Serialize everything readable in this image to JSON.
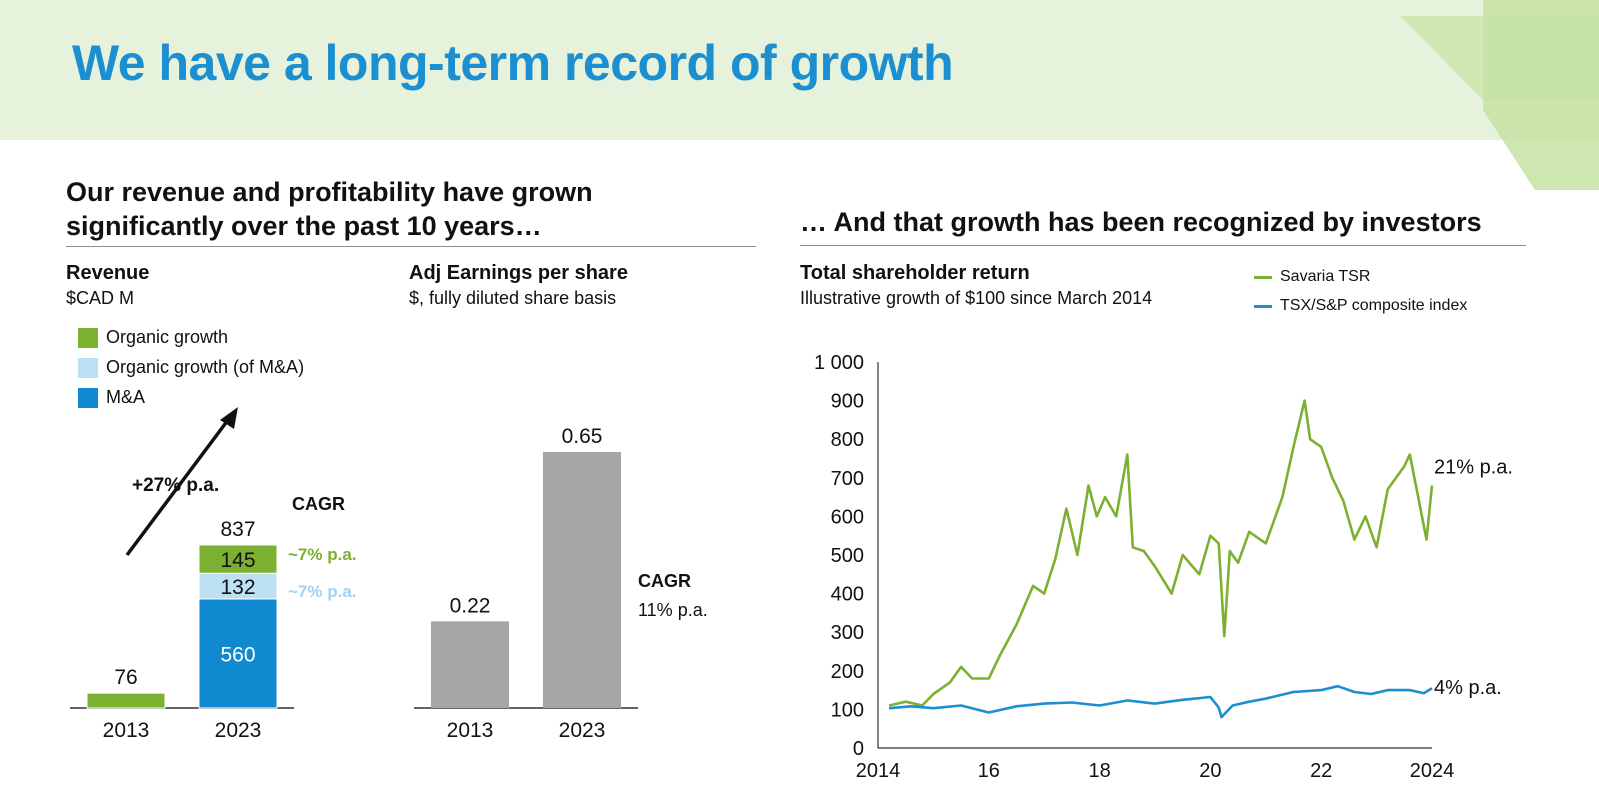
{
  "page": {
    "title": "We have a long-term record of growth",
    "left_section_title": "Our revenue and profitability have grown significantly over the past 10 years…",
    "right_section_title": "… And that growth has been recognized by investors"
  },
  "revenue": {
    "title": "Revenue",
    "subtitle": "$CAD M",
    "legend": [
      {
        "label": "Organic growth",
        "color": "#7cb030"
      },
      {
        "label": "Organic growth (of M&A)",
        "color": "#bde0f4"
      },
      {
        "label": "M&A",
        "color": "#0f8ad0"
      }
    ],
    "arrow_label": "+27% p.a.",
    "cagr_label": "CAGR",
    "cagr_values": [
      {
        "label": "~7% p.a.",
        "color": "#7cb030"
      },
      {
        "label": "~7% p.a.",
        "color": "#9fd3ef"
      }
    ]
  },
  "eps": {
    "title": "Adj Earnings per share",
    "subtitle": "$, fully diluted share basis",
    "cagr_label": "CAGR",
    "cagr_value": "11% p.a."
  },
  "tsr": {
    "title": "Total shareholder return",
    "subtitle": "Illustrative growth of $100 since March 2014",
    "legend": [
      {
        "label": "Savaria TSR",
        "color": "#7cb030"
      },
      {
        "label": "TSX/S&P composite index",
        "color": "#1b8fcf"
      }
    ],
    "end_labels": [
      "21% p.a.",
      "4% p.a."
    ]
  },
  "chart_data": [
    {
      "type": "bar",
      "stacked": true,
      "title": "Revenue",
      "categories": [
        "2013",
        "2023"
      ],
      "series": [
        {
          "name": "M&A",
          "values": [
            0,
            560
          ],
          "color": "#0f8ad0"
        },
        {
          "name": "Organic growth (of M&A)",
          "values": [
            0,
            132
          ],
          "color": "#bde0f4"
        },
        {
          "name": "Organic growth",
          "values": [
            76,
            145
          ],
          "color": "#7cb030"
        }
      ],
      "totals": [
        76,
        837
      ],
      "ylim": [
        0,
        837
      ]
    },
    {
      "type": "bar",
      "title": "Adj Earnings per share",
      "categories": [
        "2013",
        "2023"
      ],
      "values": [
        0.22,
        0.65
      ],
      "value_labels": [
        "0.22",
        "0.65"
      ],
      "color": "#a6a6a6",
      "ylim": [
        0,
        0.65
      ]
    },
    {
      "type": "line",
      "title": "Total shareholder return",
      "xlim": [
        2014,
        2024
      ],
      "ylim": [
        0,
        1000
      ],
      "xticks": [
        "2014",
        "16",
        "18",
        "20",
        "22",
        "2024"
      ],
      "yticks": [
        "0",
        "100",
        "200",
        "300",
        "400",
        "500",
        "600",
        "700",
        "800",
        "900",
        "1 000"
      ],
      "grid": false,
      "legend_position": "top-right",
      "series": [
        {
          "name": "Savaria TSR",
          "color": "#7cb030",
          "x": [
            2014.2,
            2014.5,
            2014.8,
            2015.0,
            2015.3,
            2015.5,
            2015.7,
            2016.0,
            2016.2,
            2016.5,
            2016.8,
            2017.0,
            2017.2,
            2017.4,
            2017.6,
            2017.8,
            2017.95,
            2018.1,
            2018.3,
            2018.5,
            2018.6,
            2018.8,
            2019.0,
            2019.3,
            2019.5,
            2019.8,
            2020.0,
            2020.15,
            2020.25,
            2020.35,
            2020.5,
            2020.7,
            2021.0,
            2021.3,
            2021.5,
            2021.7,
            2021.8,
            2022.0,
            2022.2,
            2022.4,
            2022.6,
            2022.8,
            2023.0,
            2023.2,
            2023.5,
            2023.6,
            2023.75,
            2023.9,
            2024.0
          ],
          "y": [
            110,
            120,
            110,
            140,
            170,
            210,
            180,
            180,
            240,
            320,
            420,
            400,
            490,
            620,
            500,
            680,
            600,
            650,
            600,
            760,
            520,
            510,
            470,
            400,
            500,
            450,
            550,
            530,
            290,
            510,
            480,
            560,
            530,
            650,
            780,
            900,
            800,
            780,
            700,
            640,
            540,
            600,
            520,
            670,
            730,
            760,
            650,
            540,
            680
          ],
          "end_label": "21% p.a."
        },
        {
          "name": "TSX/S&P composite index",
          "color": "#1b8fcf",
          "x": [
            2014.2,
            2014.6,
            2015.0,
            2015.5,
            2016.0,
            2016.5,
            2017.0,
            2017.5,
            2018.0,
            2018.5,
            2019.0,
            2019.5,
            2020.0,
            2020.15,
            2020.2,
            2020.4,
            2020.7,
            2021.0,
            2021.5,
            2022.0,
            2022.3,
            2022.6,
            2022.9,
            2023.2,
            2023.6,
            2023.85,
            2024.0
          ],
          "y": [
            103,
            108,
            103,
            110,
            92,
            108,
            115,
            118,
            110,
            123,
            115,
            125,
            132,
            105,
            80,
            110,
            120,
            128,
            145,
            150,
            160,
            145,
            140,
            150,
            150,
            142,
            155
          ],
          "end_label": "4% p.a."
        }
      ]
    }
  ]
}
